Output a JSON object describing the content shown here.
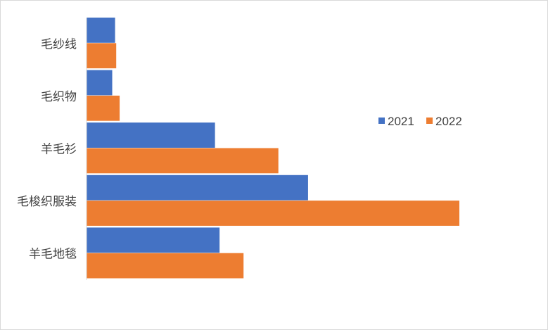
{
  "chart_data": {
    "type": "bar",
    "orientation": "horizontal",
    "categories": [
      "毛纱线",
      "毛织物",
      "羊毛衫",
      "毛梭织服装",
      "羊毛地毯"
    ],
    "series": [
      {
        "name": "2021",
        "color": "#4472C4",
        "values": [
          5.0,
          4.5,
          22.5,
          38.8,
          23.3
        ]
      },
      {
        "name": "2022",
        "color": "#ED7D31",
        "values": [
          5.2,
          5.8,
          33.6,
          65.3,
          27.5
        ]
      }
    ],
    "xlim": [
      0,
      70
    ],
    "grid": false,
    "legend_position": "right"
  }
}
